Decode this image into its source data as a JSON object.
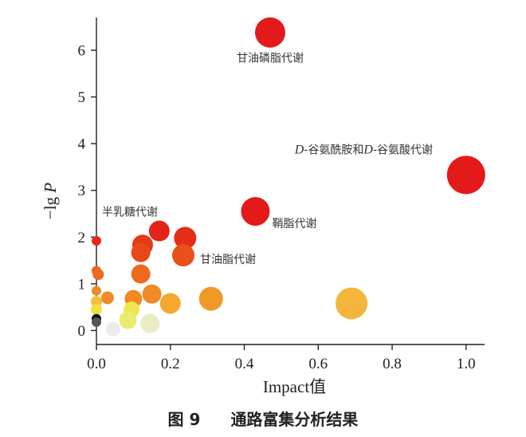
{
  "caption": {
    "figure_number": "图 9",
    "title": "通路富集分析结果"
  },
  "chart_data": {
    "type": "scatter",
    "xlabel": "Impact值",
    "ylabel_prefix": "−lg ",
    "ylabel_var": "P",
    "xlim": [
      0,
      1.05
    ],
    "ylim": [
      -0.3,
      6.7
    ],
    "xticks": [
      0.0,
      0.2,
      0.4,
      0.6,
      0.8,
      1.0
    ],
    "xtick_labels": [
      "0.0",
      "0.2",
      "0.4",
      "0.6",
      "0.8",
      "1.0"
    ],
    "yticks": [
      0,
      1,
      2,
      3,
      4,
      5,
      6
    ],
    "ytick_labels": [
      "0",
      "1",
      "2",
      "3",
      "4",
      "5",
      "6"
    ],
    "grid": false,
    "points": [
      {
        "x": 0.47,
        "y": 6.38,
        "size": 19,
        "color": "#e41a1a"
      },
      {
        "x": 1.0,
        "y": 3.33,
        "size": 24,
        "color": "#e41a1a"
      },
      {
        "x": 0.43,
        "y": 2.55,
        "size": 18,
        "color": "#e41a1a"
      },
      {
        "x": 0.17,
        "y": 2.13,
        "size": 13,
        "color": "#e32417"
      },
      {
        "x": 0.24,
        "y": 1.98,
        "size": 14,
        "color": "#e52e16"
      },
      {
        "x": 0.125,
        "y": 1.83,
        "size": 13,
        "color": "#e63a15"
      },
      {
        "x": 0.12,
        "y": 1.67,
        "size": 12,
        "color": "#e84818"
      },
      {
        "x": 0.235,
        "y": 1.61,
        "size": 14,
        "color": "#ea501a"
      },
      {
        "x": 0.0,
        "y": 1.92,
        "size": 6,
        "color": "#e52a17"
      },
      {
        "x": 0.0,
        "y": 1.28,
        "size": 6,
        "color": "#ec6320"
      },
      {
        "x": 0.005,
        "y": 1.2,
        "size": 7,
        "color": "#ed6b21"
      },
      {
        "x": 0.12,
        "y": 1.21,
        "size": 12,
        "color": "#ed6a20"
      },
      {
        "x": 0.0,
        "y": 0.85,
        "size": 6,
        "color": "#f08a25"
      },
      {
        "x": 0.03,
        "y": 0.7,
        "size": 8,
        "color": "#f08a25"
      },
      {
        "x": 0.15,
        "y": 0.78,
        "size": 12,
        "color": "#f08a25"
      },
      {
        "x": 0.1,
        "y": 0.68,
        "size": 11,
        "color": "#f08a25"
      },
      {
        "x": 0.31,
        "y": 0.68,
        "size": 15,
        "color": "#f1982a"
      },
      {
        "x": 0.2,
        "y": 0.58,
        "size": 13,
        "color": "#f2a92e"
      },
      {
        "x": 0.69,
        "y": 0.58,
        "size": 20,
        "color": "#f4b63a"
      },
      {
        "x": 0.0,
        "y": 0.62,
        "size": 7,
        "color": "#f0c040"
      },
      {
        "x": 0.0,
        "y": 0.45,
        "size": 7,
        "color": "#f0e040"
      },
      {
        "x": 0.095,
        "y": 0.45,
        "size": 10,
        "color": "#eee650"
      },
      {
        "x": 0.085,
        "y": 0.22,
        "size": 11,
        "color": "#eaec70"
      },
      {
        "x": 0.145,
        "y": 0.15,
        "size": 12,
        "color": "#ececc4"
      },
      {
        "x": 0.045,
        "y": 0.03,
        "size": 9,
        "color": "#ececec"
      },
      {
        "x": 0.0,
        "y": 0.25,
        "size": 6,
        "color": "#111111"
      },
      {
        "x": 0.0,
        "y": 0.18,
        "size": 6,
        "color": "#555555"
      }
    ],
    "annotations": [
      {
        "text": "甘油磷脂代谢",
        "x": 0.47,
        "y": 6.38,
        "pos": "below"
      },
      {
        "text": "-谷氨酰胺和",
        "rich": [
          [
            "D",
            "i"
          ],
          [
            "-谷氨酰胺和",
            ""
          ],
          [
            "D",
            "i"
          ],
          [
            "-谷氨酸代谢",
            ""
          ]
        ],
        "x": 1.0,
        "y": 3.33,
        "pos": "upper-left"
      },
      {
        "text": "鞘脂代谢",
        "x": 0.43,
        "y": 2.55,
        "pos": "lower-right"
      },
      {
        "text": "半乳糖代谢",
        "x": 0.17,
        "y": 2.13,
        "pos": "upper-left"
      },
      {
        "text": "甘油脂代谢",
        "x": 0.235,
        "y": 1.61,
        "pos": "right"
      }
    ]
  }
}
